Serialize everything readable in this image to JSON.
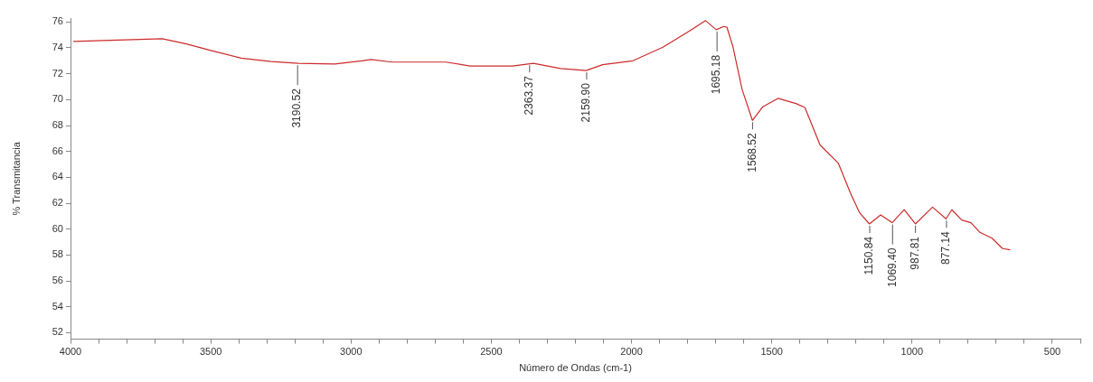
{
  "chart_data": {
    "type": "line",
    "xlabel": "Número de Ondas (cm-1)",
    "ylabel": "% Transmitancia",
    "x": [
      3990,
      3673,
      3587,
      3500,
      3392,
      3285,
      3188,
      3058,
      2961,
      2929,
      2855,
      2662,
      2575,
      2425,
      2350,
      2253,
      2162,
      2103,
      1995,
      1888,
      1801,
      1736,
      1698,
      1671,
      1660,
      1638,
      1606,
      1569,
      1532,
      1478,
      1414,
      1382,
      1328,
      1263,
      1220,
      1188,
      1152,
      1112,
      1071,
      1028,
      988,
      927,
      879,
      858,
      823,
      790,
      758,
      715,
      677,
      650
    ],
    "series": [
      {
        "color": "#cc2b2b",
        "values": [
          74.5,
          74.7,
          74.3,
          73.8,
          73.2,
          72.95,
          72.8,
          72.75,
          73.0,
          73.1,
          72.9,
          72.9,
          72.6,
          72.6,
          72.8,
          72.4,
          72.25,
          72.7,
          73.0,
          74.05,
          75.2,
          76.1,
          75.4,
          75.65,
          75.6,
          74.05,
          70.8,
          68.4,
          69.45,
          70.1,
          69.7,
          69.4,
          66.5,
          65.1,
          62.8,
          61.3,
          60.4,
          61.1,
          60.5,
          61.5,
          60.4,
          61.7,
          60.8,
          61.5,
          60.7,
          60.5,
          59.75,
          59.3,
          58.5,
          58.4
        ]
      }
    ],
    "xlim": [
      4000,
      400
    ],
    "ylim": [
      51.5,
      76.3
    ],
    "xticks": [
      4000,
      {
        "value": 3900,
        "label": null
      },
      {
        "value": 3800,
        "label": null
      },
      {
        "value": 3700,
        "label": null
      },
      {
        "value": 3600,
        "label": null
      },
      3500,
      {
        "value": 3400,
        "label": null
      },
      {
        "value": 3300,
        "label": null
      },
      {
        "value": 3200,
        "label": null
      },
      {
        "value": 3100,
        "label": null
      },
      3000,
      {
        "value": 2900,
        "label": null
      },
      {
        "value": 2800,
        "label": null
      },
      {
        "value": 2700,
        "label": null
      },
      {
        "value": 2600,
        "label": null
      },
      2500,
      {
        "value": 2400,
        "label": null
      },
      {
        "value": 2300,
        "label": null
      },
      {
        "value": 2200,
        "label": null
      },
      {
        "value": 2100,
        "label": null
      },
      2000,
      {
        "value": 1900,
        "label": null
      },
      {
        "value": 1800,
        "label": null
      },
      {
        "value": 1700,
        "label": null
      },
      {
        "value": 1600,
        "label": null
      },
      1500,
      {
        "value": 1400,
        "label": null
      },
      {
        "value": 1300,
        "label": null
      },
      {
        "value": 1200,
        "label": null
      },
      {
        "value": 1100,
        "label": null
      },
      1000,
      {
        "value": 900,
        "label": null
      },
      {
        "value": 800,
        "label": null
      },
      {
        "value": 700,
        "label": null
      },
      {
        "value": 600,
        "label": null
      },
      500,
      {
        "value": 400,
        "label": null
      }
    ],
    "yticks": [
      52,
      54,
      56,
      58,
      60,
      62,
      64,
      66,
      68,
      70,
      72,
      74,
      76
    ],
    "grid": false,
    "legend": false,
    "marker": "none",
    "line_style": "solid",
    "annotations": [
      {
        "text": "3190.52",
        "x": 3190.52,
        "y": 72.8
      },
      {
        "text": "2363.37",
        "x": 2363.37,
        "y": 72.8
      },
      {
        "text": "2159.90",
        "x": 2159.9,
        "y": 72.25
      },
      {
        "text": "1695.18",
        "x": 1695.18,
        "y": 75.4
      },
      {
        "text": "1568.52",
        "x": 1568.52,
        "y": 68.4
      },
      {
        "text": "1150.84",
        "x": 1150.84,
        "y": 60.4
      },
      {
        "text": "1069.40",
        "x": 1069.4,
        "y": 60.5
      },
      {
        "text": "987.81",
        "x": 987.81,
        "y": 60.4
      },
      {
        "text": "877.14",
        "x": 877.14,
        "y": 60.8
      }
    ]
  }
}
